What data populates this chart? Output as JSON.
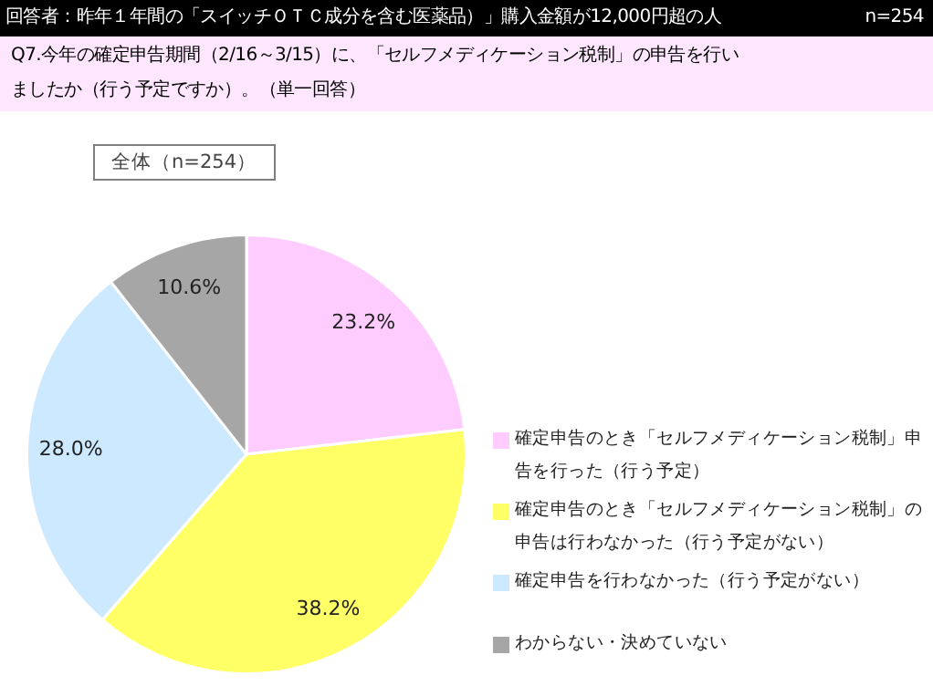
{
  "chart_data": {
    "type": "pie",
    "title": "回答者：昨年１年間の「スイッチＯＴＣ成分を含む医薬品）」購入金額が12,000円超の人",
    "subtitle": "Q7.今年の確定申告期間（2/16～3/15）に、「セルフメディケーション税制」の申告を行いましたか（行う予定ですか）。（単一回答）",
    "annotations": [
      "n=254",
      "全体（n=254）"
    ],
    "categories": [
      "確定申告のとき「セルフメディケーション税制」申告を行った（行う予定）",
      "確定申告のとき「セルフメディケーション税制」の申告は行わなかった（行う予定がない）",
      "確定申告を行わなかった（行う予定がない）",
      "わからない・決めていない"
    ],
    "values": [
      23.2,
      38.2,
      28.0,
      10.6
    ],
    "colors": [
      "#ffccff",
      "#ffff66",
      "#cce9ff",
      "#a6a6a6"
    ],
    "value_labels": [
      "23.2%",
      "38.2%",
      "28.0%",
      "10.6%"
    ],
    "legend": "right"
  }
}
